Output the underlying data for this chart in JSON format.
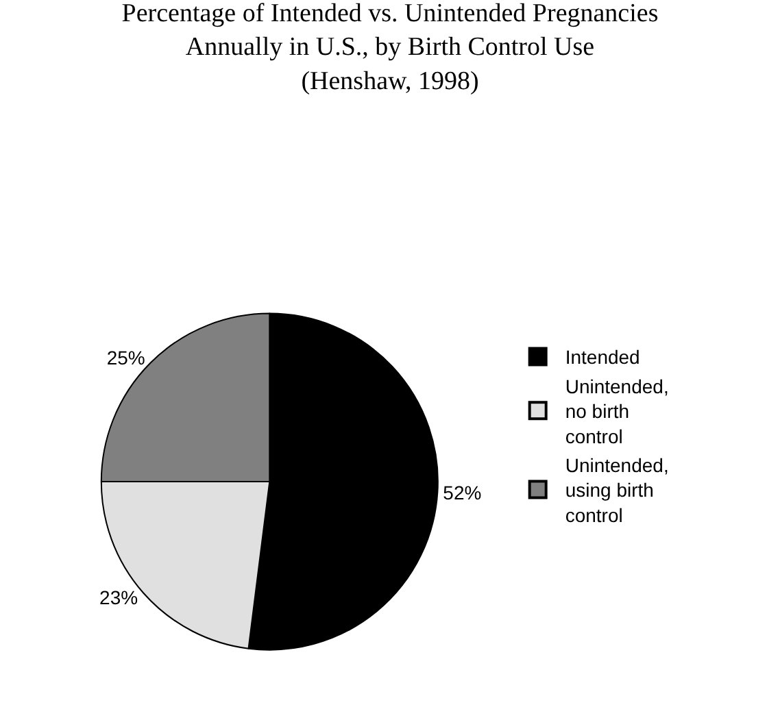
{
  "chart_data": {
    "type": "pie",
    "title": "Percentage of Intended vs. Unintended Pregnancies\nAnnually in U.S., by Birth Control Use\n(Henshaw, 1998)",
    "categories": [
      "Intended",
      "Unintended, no birth control",
      "Unintended, using birth control"
    ],
    "values": [
      52,
      23,
      25
    ],
    "colors": [
      "#000000",
      "#e0e0e0",
      "#808080"
    ],
    "value_labels": [
      "52%",
      "23%",
      "25%"
    ],
    "legend": "right"
  }
}
